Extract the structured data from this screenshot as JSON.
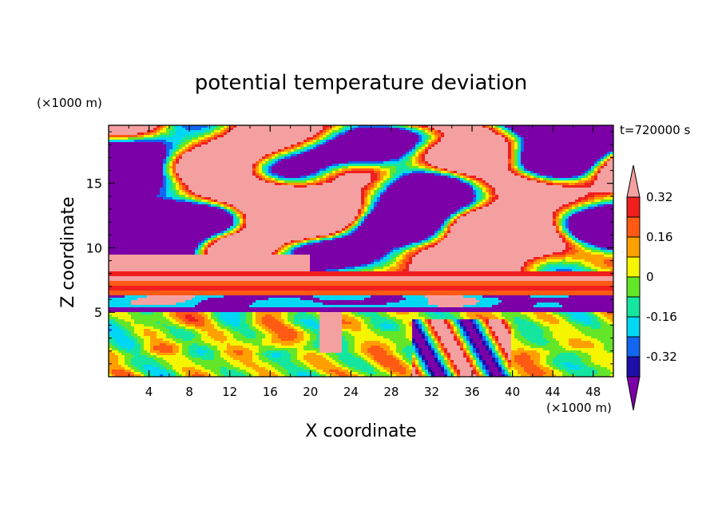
{
  "chart_data": {
    "type": "heatmap",
    "title": "potential temperature deviation",
    "time_label": "t=720000 s",
    "xlabel": "X coordinate",
    "ylabel": "Z coordinate",
    "x_unit": "(×1000 m)",
    "y_unit": "(×1000 m)",
    "xlim": [
      0,
      50
    ],
    "ylim": [
      0,
      19.5
    ],
    "x_ticks": [
      4,
      8,
      12,
      16,
      20,
      24,
      28,
      32,
      36,
      40,
      44,
      48
    ],
    "y_ticks": [
      5,
      10,
      15
    ],
    "colorbar": {
      "levels": [
        -0.4,
        -0.32,
        -0.24,
        -0.16,
        -0.08,
        0,
        0.08,
        0.16,
        0.24,
        0.32,
        0.4
      ],
      "labels": [
        "0.32",
        "0.16",
        "0",
        "-0.16",
        "-0.32"
      ],
      "label_values": [
        0.32,
        0.16,
        0,
        -0.16,
        -0.32
      ],
      "colors": [
        "#7b00a8",
        "#1e0fa8",
        "#1266f0",
        "#00d7f5",
        "#14e6a0",
        "#64e628",
        "#f5f500",
        "#ffa000",
        "#ff5a14",
        "#f01e1e",
        "#f5a0a0"
      ],
      "extend": "both"
    },
    "layers": [
      {
        "z_range": [
          0,
          5
        ],
        "description_value": "mixed"
      },
      {
        "z_range": [
          5,
          6.5
        ],
        "value": -0.4
      },
      {
        "z_range": [
          6.5,
          8
        ],
        "value": 0.24
      },
      {
        "z_range": [
          8,
          19.5
        ],
        "value": "alternating"
      }
    ]
  }
}
